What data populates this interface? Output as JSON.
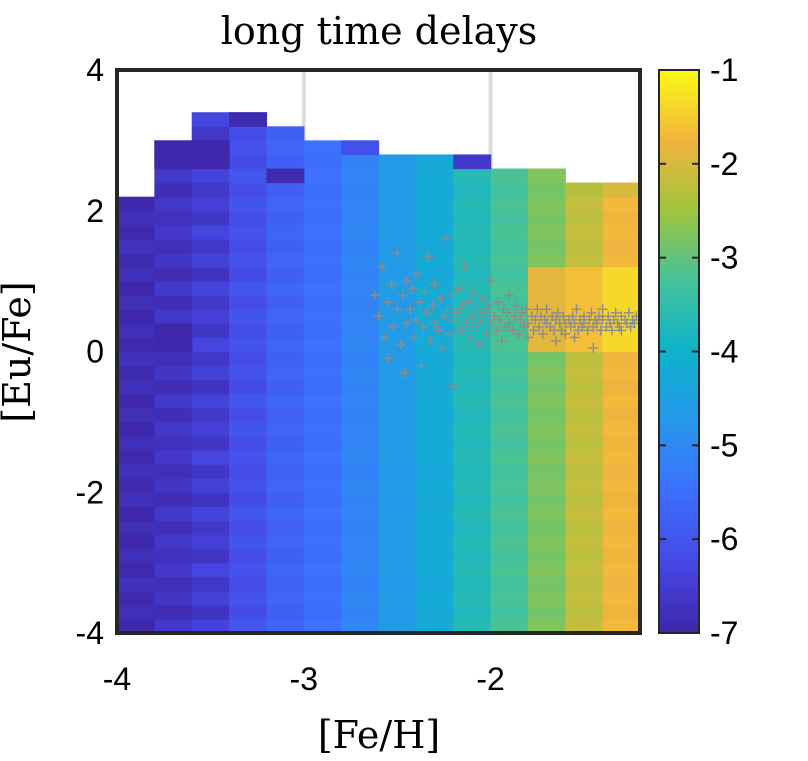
{
  "chart_data": {
    "type": "heatmap",
    "title": "long time delays",
    "xlabel": "[Fe/H]",
    "ylabel": "[Eu/Fe]",
    "xlim": [
      -4,
      -1.2
    ],
    "ylim": [
      -4,
      4
    ],
    "xticks": [
      -4,
      -3,
      -2
    ],
    "xtick_labels": [
      "-4",
      "-3",
      "-2"
    ],
    "yticks": [
      -4,
      -2,
      0,
      2,
      4
    ],
    "ytick_labels": [
      "-4",
      "-2",
      "0",
      "2",
      "4"
    ],
    "grid": true,
    "colormap": "parula",
    "colorbar": {
      "range": [
        -7,
        -1
      ],
      "ticks": [
        -7,
        -6,
        -5,
        -4,
        -3,
        -2,
        -1
      ],
      "tick_labels": [
        "-7",
        "-6",
        "-5",
        "-4",
        "-3",
        "-2",
        "-1"
      ]
    },
    "heatmap": {
      "column_bin_width": 0.2,
      "row_bin_width": 0.2,
      "columns": [
        {
          "x_left": -4.0,
          "y_top": 2.2,
          "base": -6.85,
          "vary": [
            -0.12,
            0.05,
            -0.05,
            0.1,
            -0.08,
            0.06,
            -0.1,
            0.04
          ]
        },
        {
          "x_left": -3.8,
          "y_top": 3.0,
          "base": -6.7,
          "vary": [
            0.1,
            -0.15,
            0.05,
            -0.1,
            0.12,
            -0.05,
            0.08,
            -0.12
          ]
        },
        {
          "x_left": -3.6,
          "y_top": 3.4,
          "base": -6.5,
          "vary": [
            0.15,
            -0.2,
            0.1,
            -0.12,
            0.18,
            -0.15,
            0.08,
            -0.1
          ]
        },
        {
          "x_left": -3.4,
          "y_top": 3.4,
          "base": -6.1,
          "vary": [
            0.1,
            -0.1,
            0.05,
            -0.08,
            0.06,
            -0.05,
            0.08,
            -0.06
          ]
        },
        {
          "x_left": -3.2,
          "y_top": 3.2,
          "base": -5.75,
          "vary": [
            0.05,
            -0.05,
            0.03,
            -0.04,
            0.05,
            -0.03,
            0.04,
            -0.05
          ]
        },
        {
          "x_left": -3.0,
          "y_top": 3.0,
          "base": -5.5,
          "vary": [
            0.05,
            -0.05,
            0.03,
            -0.04,
            0.05,
            -0.03,
            0.04,
            -0.05
          ]
        },
        {
          "x_left": -2.8,
          "y_top": 3.0,
          "base": -5.1,
          "vary": [
            0.05,
            -0.05,
            0.03,
            -0.04,
            0.05,
            -0.03,
            0.04,
            -0.05
          ]
        },
        {
          "x_left": -2.6,
          "y_top": 2.8,
          "base": -4.65,
          "vary": [
            0.05,
            -0.05,
            0.03,
            -0.04,
            0.05,
            -0.03,
            0.04,
            -0.05
          ]
        },
        {
          "x_left": -2.4,
          "y_top": 2.8,
          "base": -4.25,
          "vary": [
            0.05,
            -0.05,
            0.03,
            -0.04,
            0.05,
            -0.03,
            0.04,
            -0.05
          ]
        },
        {
          "x_left": -2.2,
          "y_top": 2.8,
          "base": -3.7,
          "vary": [
            0.05,
            -0.05,
            0.03,
            -0.04,
            0.05,
            -0.03,
            0.04,
            -0.05
          ]
        },
        {
          "x_left": -2.0,
          "y_top": 2.6,
          "base": -3.25,
          "vary": [
            0.05,
            -0.05,
            0.03,
            -0.04,
            0.05,
            -0.03,
            0.04,
            -0.05
          ]
        },
        {
          "x_left": -1.8,
          "y_top": 2.6,
          "base": -2.8,
          "vary": [
            0.05,
            -0.05,
            0.03,
            -0.04,
            0.05,
            -0.03,
            0.04,
            -0.05
          ]
        },
        {
          "x_left": -1.6,
          "y_top": 2.4,
          "base": -2.2,
          "vary": [
            0.05,
            -0.05,
            0.03,
            -0.04,
            0.05,
            -0.03,
            0.04,
            -0.05
          ]
        },
        {
          "x_left": -1.4,
          "y_top": 2.4,
          "base": -1.75,
          "vary": [
            0.05,
            -0.05,
            0.03,
            -0.04,
            0.05,
            -0.03,
            0.04,
            -0.05
          ]
        }
      ],
      "dark_patches": [
        {
          "x": -3.8,
          "y_bottom": 2.6,
          "y_top": 3.0,
          "value": -6.95
        },
        {
          "x": -3.6,
          "y_bottom": 2.6,
          "y_top": 3.0,
          "value": -6.95
        },
        {
          "x": -3.8,
          "y_bottom": 0.0,
          "y_top": 0.4,
          "value": -6.95
        },
        {
          "x": -3.4,
          "y_bottom": 3.2,
          "y_top": 3.4,
          "value": -6.9
        },
        {
          "x": -3.2,
          "y_bottom": 2.4,
          "y_top": 2.6,
          "value": -6.9
        },
        {
          "x": -2.2,
          "y_bottom": 2.6,
          "y_top": 2.8,
          "value": -6.6
        },
        {
          "x": -2.8,
          "y_bottom": 2.8,
          "y_top": 3.0,
          "value": -6.1
        }
      ],
      "top_band": [
        {
          "x": -1.6,
          "y_top": 2.4,
          "base": -2.3
        },
        {
          "x": -1.4,
          "y_top": 2.4,
          "base": -2.0
        }
      ],
      "yellow_band": {
        "x_from": -1.8,
        "x_to": -1.2,
        "y_from": 0.0,
        "y_to": 1.2,
        "value": -1.1
      }
    },
    "scatter": {
      "series_name": "",
      "marker": "+",
      "color": "#8c8c8c",
      "x_range": [
        -2.65,
        -1.22
      ],
      "y_center": 0.4,
      "y_spread_low_metallicity": 1.1,
      "y_spread_high_metallicity": 0.3,
      "points": [
        [
          -2.62,
          0.8
        ],
        [
          -2.6,
          0.5
        ],
        [
          -2.58,
          1.2
        ],
        [
          -2.57,
          0.2
        ],
        [
          -2.55,
          -0.1
        ],
        [
          -2.55,
          0.7
        ],
        [
          -2.53,
          0.95
        ],
        [
          -2.52,
          0.35
        ],
        [
          -2.5,
          1.4
        ],
        [
          -2.5,
          0.6
        ],
        [
          -2.48,
          0.1
        ],
        [
          -2.47,
          0.8
        ],
        [
          -2.46,
          -0.3
        ],
        [
          -2.45,
          1.0
        ],
        [
          -2.45,
          0.4
        ],
        [
          -2.43,
          0.6
        ],
        [
          -2.42,
          0.9
        ],
        [
          -2.41,
          0.2
        ],
        [
          -2.4,
          0.45
        ],
        [
          -2.4,
          1.1
        ],
        [
          -2.38,
          0.7
        ],
        [
          -2.37,
          -0.2
        ],
        [
          -2.36,
          0.35
        ],
        [
          -2.35,
          0.85
        ],
        [
          -2.34,
          0.55
        ],
        [
          -2.33,
          1.35
        ],
        [
          -2.32,
          0.15
        ],
        [
          -2.31,
          0.65
        ],
        [
          -2.3,
          0.4
        ],
        [
          -2.3,
          0.95
        ],
        [
          -2.28,
          0.3
        ],
        [
          -2.27,
          0.75
        ],
        [
          -2.26,
          0.05
        ],
        [
          -2.25,
          0.5
        ],
        [
          -2.24,
          1.6
        ],
        [
          -2.23,
          0.6
        ],
        [
          -2.22,
          0.25
        ],
        [
          -2.21,
          0.8
        ],
        [
          -2.2,
          0.45
        ],
        [
          -2.2,
          -0.5
        ],
        [
          -2.18,
          0.55
        ],
        [
          -2.17,
          0.9
        ],
        [
          -2.16,
          0.3
        ],
        [
          -2.15,
          0.65
        ],
        [
          -2.14,
          1.2
        ],
        [
          -2.13,
          0.4
        ],
        [
          -2.12,
          0.7
        ],
        [
          -2.11,
          0.2
        ],
        [
          -2.1,
          0.5
        ],
        [
          -2.1,
          0.85
        ],
        [
          -2.08,
          0.35
        ],
        [
          -2.07,
          0.6
        ],
        [
          -2.06,
          0.1
        ],
        [
          -2.05,
          0.45
        ],
        [
          -2.04,
          0.75
        ],
        [
          -2.03,
          0.55
        ],
        [
          -2.02,
          0.25
        ],
        [
          -2.01,
          0.65
        ],
        [
          -2.0,
          0.4
        ],
        [
          -2.0,
          1.0
        ],
        [
          -1.98,
          0.5
        ],
        [
          -1.97,
          0.3
        ],
        [
          -1.96,
          0.7
        ],
        [
          -1.95,
          0.45
        ],
        [
          -1.94,
          0.15
        ],
        [
          -1.93,
          0.6
        ],
        [
          -1.92,
          0.35
        ],
        [
          -1.91,
          0.55
        ],
        [
          -1.9,
          0.4
        ],
        [
          -1.9,
          0.8
        ],
        [
          -1.88,
          0.3
        ],
        [
          -1.87,
          0.5
        ],
        [
          -1.86,
          0.65
        ],
        [
          -1.85,
          0.25
        ],
        [
          -1.84,
          0.45
        ],
        [
          -1.83,
          0.55
        ],
        [
          -1.82,
          0.35
        ],
        [
          -1.81,
          0.6
        ],
        [
          -1.8,
          0.4
        ],
        [
          -1.8,
          0.2
        ],
        [
          -1.78,
          0.5
        ],
        [
          -1.77,
          0.3
        ],
        [
          -1.76,
          0.45
        ],
        [
          -1.75,
          0.6
        ],
        [
          -1.74,
          0.35
        ],
        [
          -1.73,
          0.5
        ],
        [
          -1.72,
          0.25
        ],
        [
          -1.71,
          0.45
        ],
        [
          -1.7,
          0.4
        ],
        [
          -1.7,
          0.6
        ],
        [
          -1.68,
          0.35
        ],
        [
          -1.67,
          0.5
        ],
        [
          -1.66,
          0.3
        ],
        [
          -1.65,
          0.45
        ],
        [
          -1.64,
          0.55
        ],
        [
          -1.63,
          0.4
        ],
        [
          -1.62,
          0.3
        ],
        [
          -1.61,
          0.5
        ],
        [
          -1.6,
          0.4
        ],
        [
          -1.6,
          0.25
        ],
        [
          -1.58,
          0.45
        ],
        [
          -1.57,
          0.35
        ],
        [
          -1.56,
          0.5
        ],
        [
          -1.55,
          0.4
        ],
        [
          -1.54,
          0.6
        ],
        [
          -1.53,
          0.3
        ],
        [
          -1.52,
          0.45
        ],
        [
          -1.51,
          0.35
        ],
        [
          -1.5,
          0.5
        ],
        [
          -1.5,
          0.4
        ],
        [
          -1.48,
          0.3
        ],
        [
          -1.47,
          0.45
        ],
        [
          -1.46,
          0.55
        ],
        [
          -1.45,
          0.35
        ],
        [
          -1.44,
          0.45
        ],
        [
          -1.43,
          0.4
        ],
        [
          -1.42,
          0.5
        ],
        [
          -1.41,
          0.3
        ],
        [
          -1.4,
          0.45
        ],
        [
          -1.4,
          0.6
        ],
        [
          -1.38,
          0.35
        ],
        [
          -1.37,
          0.5
        ],
        [
          -1.36,
          0.4
        ],
        [
          -1.35,
          0.3
        ],
        [
          -1.34,
          0.45
        ],
        [
          -1.33,
          0.55
        ],
        [
          -1.32,
          0.4
        ],
        [
          -1.31,
          0.35
        ],
        [
          -1.3,
          0.5
        ],
        [
          -1.3,
          0.3
        ],
        [
          -1.28,
          0.45
        ],
        [
          -1.27,
          0.4
        ],
        [
          -1.26,
          0.55
        ],
        [
          -1.25,
          0.35
        ],
        [
          -1.24,
          0.45
        ],
        [
          -1.23,
          0.4
        ],
        [
          -1.22,
          0.5
        ],
        [
          -1.45,
          0.05
        ],
        [
          -1.55,
          0.2
        ],
        [
          -1.65,
          0.15
        ]
      ]
    }
  }
}
